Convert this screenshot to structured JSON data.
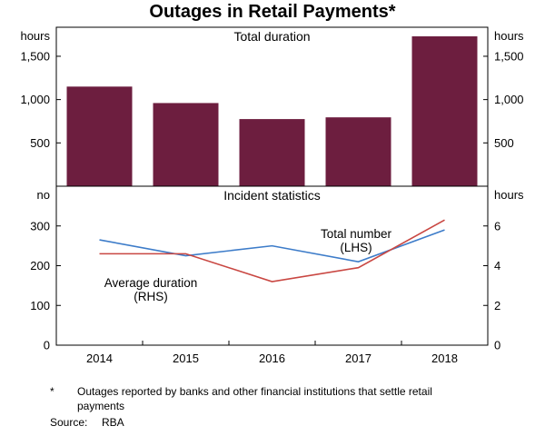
{
  "title": "Outages in Retail Payments*",
  "chart_data": [
    {
      "type": "bar",
      "panel": "top",
      "title": "Total duration",
      "unit_left": "hours",
      "unit_right": "hours",
      "categories": [
        "2014",
        "2015",
        "2016",
        "2017",
        "2018"
      ],
      "values": [
        1150,
        960,
        775,
        795,
        1730
      ],
      "ylim": [
        0,
        1835
      ],
      "yticks": [
        500,
        1000,
        1500
      ],
      "color": "#6d1e3f",
      "grid": false
    },
    {
      "type": "line",
      "panel": "bottom",
      "title": "Incident statistics",
      "unit_left": "no",
      "unit_right": "hours",
      "categories": [
        "2014",
        "2015",
        "2016",
        "2017",
        "2018"
      ],
      "series": [
        {
          "name": "Total number",
          "axis": "LHS",
          "color": "#3d7cc9",
          "values": [
            265,
            225,
            250,
            210,
            290
          ]
        },
        {
          "name": "Average duration",
          "axis": "RHS",
          "color": "#c94742",
          "values": [
            4.6,
            4.6,
            3.2,
            3.9,
            6.3
          ]
        }
      ],
      "ylim_left": [
        0,
        400
      ],
      "yticks_left": [
        0,
        100,
        200,
        300
      ],
      "ylim_right": [
        0,
        8
      ],
      "yticks_right": [
        0,
        2,
        4,
        6
      ],
      "annotations": [
        {
          "text": "Total number",
          "x": 392,
          "y": 262,
          "color": "#3d7cc9"
        },
        {
          "text": "(LHS)",
          "x": 392,
          "y": 277,
          "color": "#3d7cc9"
        },
        {
          "text": "Average duration",
          "x": 166,
          "y": 316,
          "color": "#c94742"
        },
        {
          "text": "(RHS)",
          "x": 166,
          "y": 331,
          "color": "#c94742"
        }
      ],
      "grid": false
    }
  ],
  "footnote": {
    "marker": "*",
    "text": "Outages reported by banks and other financial institutions that settle retail payments"
  },
  "source": {
    "label": "Source:",
    "value": "RBA"
  }
}
